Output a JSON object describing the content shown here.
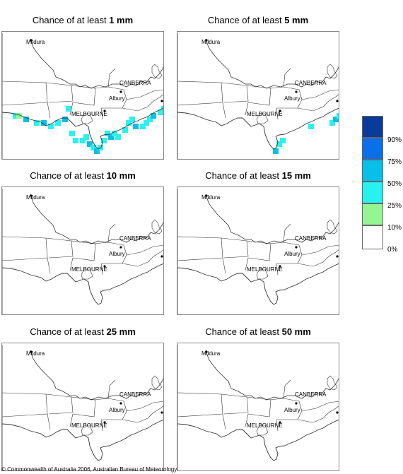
{
  "panels": [
    {
      "prefix": "Chance of at least ",
      "amount": "1 mm",
      "cells": [
        [
          15,
          115,
          1,
          2
        ],
        [
          20,
          115,
          0,
          1
        ],
        [
          30,
          120,
          2,
          1
        ],
        [
          45,
          125,
          1,
          2
        ],
        [
          55,
          125,
          2,
          1
        ],
        [
          65,
          130,
          1,
          2
        ],
        [
          75,
          125,
          1,
          2
        ],
        [
          85,
          120,
          2,
          1
        ],
        [
          95,
          140,
          1,
          1
        ],
        [
          100,
          150,
          1,
          1
        ],
        [
          110,
          150,
          1,
          2
        ],
        [
          115,
          145,
          1,
          1
        ],
        [
          120,
          155,
          2,
          1
        ],
        [
          125,
          160,
          1,
          2
        ],
        [
          130,
          165,
          2,
          2
        ],
        [
          135,
          160,
          1,
          2
        ],
        [
          140,
          150,
          1,
          1
        ],
        [
          145,
          140,
          1,
          2
        ],
        [
          150,
          145,
          2,
          1
        ],
        [
          155,
          140,
          1,
          1
        ],
        [
          160,
          145,
          1,
          1
        ],
        [
          170,
          135,
          1,
          2
        ],
        [
          175,
          125,
          1,
          1
        ],
        [
          180,
          120,
          1,
          1
        ],
        [
          185,
          130,
          2,
          1
        ],
        [
          195,
          130,
          1,
          2
        ],
        [
          200,
          125,
          1,
          1
        ],
        [
          205,
          120,
          1,
          2
        ],
        [
          210,
          115,
          2,
          1
        ],
        [
          220,
          110,
          1,
          1
        ],
        [
          225,
          105,
          1,
          1
        ],
        [
          90,
          105,
          1,
          1
        ]
      ]
    },
    {
      "prefix": "Chance of at least ",
      "amount": "5 mm",
      "cells": [
        [
          135,
          165,
          2,
          2
        ],
        [
          140,
          155,
          1,
          1
        ],
        [
          185,
          130,
          1,
          1
        ],
        [
          215,
          125,
          1,
          2
        ],
        [
          220,
          120,
          2,
          1
        ],
        [
          225,
          115,
          1,
          1
        ],
        [
          145,
          150,
          1,
          1
        ]
      ]
    },
    {
      "prefix": "Chance of at least ",
      "amount": "10 mm",
      "cells": []
    },
    {
      "prefix": "Chance of at least ",
      "amount": "15 mm",
      "cells": []
    },
    {
      "prefix": "Chance of at least ",
      "amount": "25 mm",
      "cells": []
    },
    {
      "prefix": "Chance of at least ",
      "amount": "50 mm",
      "cells": []
    }
  ],
  "map_labels": {
    "mildura": "Mildura",
    "canberra": "CANBERRA",
    "albury": "Albury",
    "melbourne": "MELBOURNE"
  },
  "legend": {
    "colors": [
      "#0a3a9a",
      "#0a6fe8",
      "#06c0ea",
      "#28f2ef",
      "#95f595",
      "#ffffff"
    ],
    "ticks": [
      "90%",
      "75%",
      "50%",
      "25%",
      "10%",
      "0%"
    ]
  },
  "copyright": "© Commonwealth of Australia 2006, Australian Bureau of Meteorology"
}
